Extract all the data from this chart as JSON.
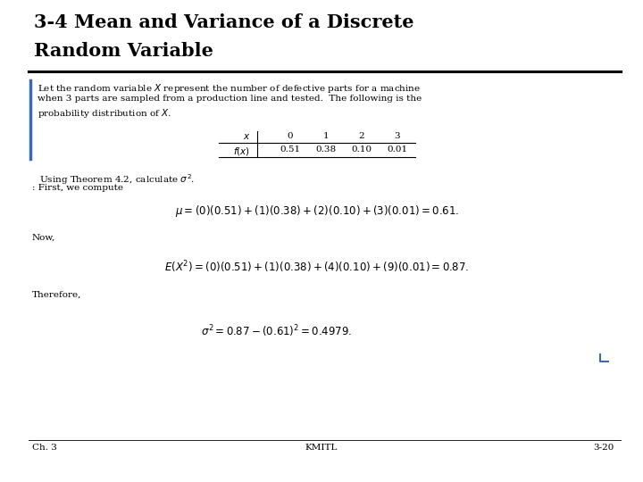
{
  "title_line1": "3-4 Mean and Variance of a Discrete",
  "title_line2": "Random Variable",
  "bg_color": "#ffffff",
  "title_color": "#000000",
  "body_color": "#000000",
  "footer_left": "Ch. 3",
  "footer_center": "KMITL",
  "footer_right": "3-20",
  "para_lines": [
    "Let the random variable $X$ represent the number of defective parts for a machine",
    "when 3 parts are sampled from a production line and tested.  The following is the",
    "probability distribution of $X$."
  ],
  "table_x_vals": [
    "0",
    "1",
    "2",
    "3"
  ],
  "table_fx_vals": [
    "0.51",
    "0.38",
    "0.10",
    "0.01"
  ],
  "theorem_text": "Using Theorem 4.2, calculate $\\sigma^2$.",
  "first_text": ": First, we compute",
  "mu_eq": "$\\mu = (0)(0.51) + (1)(0.38) + (2)(0.10) + (3)(0.01) = 0.61.$",
  "now_text": "Now,",
  "ex2_eq": "$E(X^2) = (0)(0.51) + (1)(0.38) + (4)(0.10) + (9)(0.01) = 0.87.$",
  "therefore_text": "Therefore,",
  "sigma_eq": "$\\sigma^2 = 0.87 - (0.61)^2 = 0.4979.$",
  "title_fontsize": 15,
  "body_fontsize": 7.5,
  "eq_fontsize": 8.5,
  "footer_fontsize": 7.5,
  "blue_bar_color": "#4169aa",
  "bracket_color": "#4169aa"
}
